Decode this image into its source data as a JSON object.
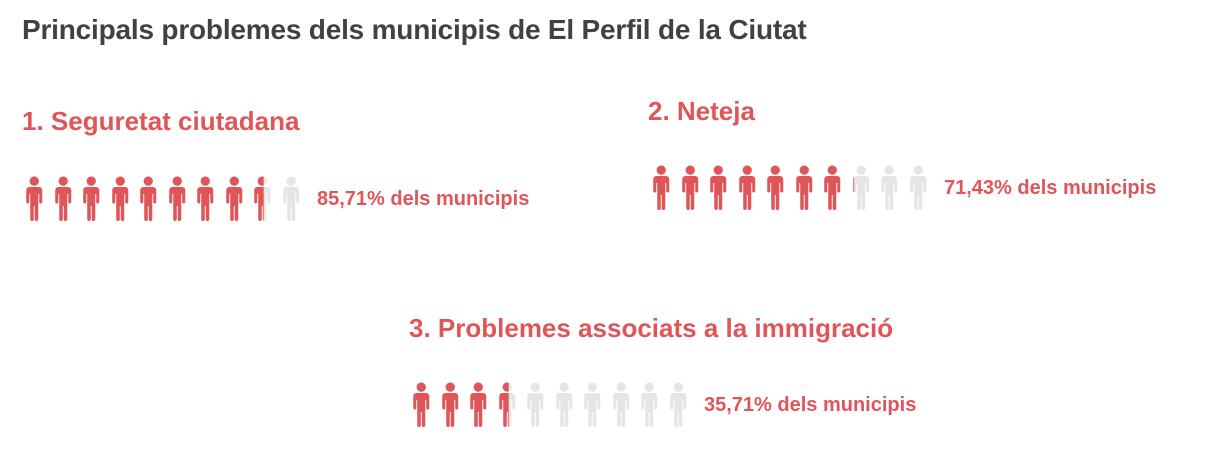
{
  "title": "Principals problemes dels municipis de El Perfil de la Ciutat",
  "colors": {
    "accent": "#e05558",
    "inactive": "#e5e5e5",
    "title": "#414141"
  },
  "icon": "person-icon",
  "items": [
    {
      "label": "1. Seguretat ciutadana",
      "value": 85.71,
      "text": "85,71% dels municipis"
    },
    {
      "label": "2. Neteja",
      "value": 71.43,
      "text": "71,43% dels municipis"
    },
    {
      "label": "3. Problemes associats a la immigració",
      "value": 35.71,
      "text": "35,71% dels municipis"
    }
  ],
  "chart_data": {
    "type": "bar",
    "title": "Principals problemes dels municipis de El Perfil de la Ciutat",
    "categories": [
      "1. Seguretat ciutadana",
      "2. Neteja",
      "3. Problemes associats a la immigració"
    ],
    "values": [
      85.71,
      71.43,
      35.71
    ],
    "units_per_chart": 10
  }
}
